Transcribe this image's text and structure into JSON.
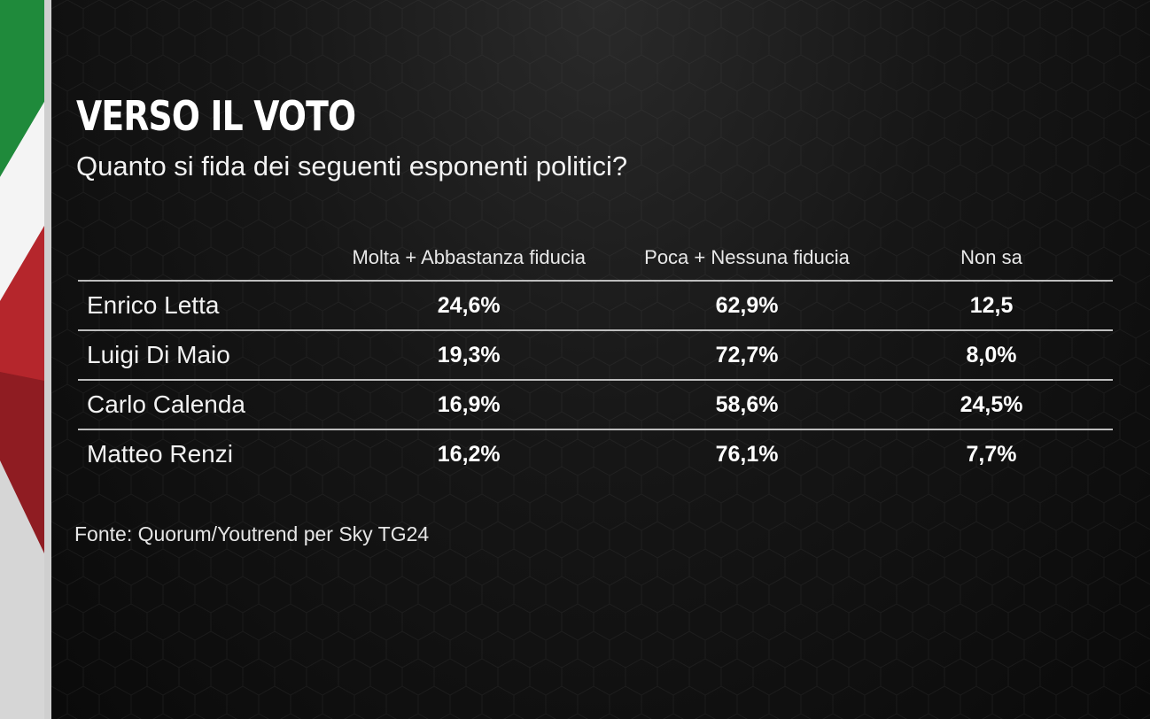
{
  "header": {
    "title": "VERSO IL VOTO",
    "subtitle": "Quanto si fida dei seguenti esponenti politici?"
  },
  "chart_data": {
    "type": "table",
    "title": "VERSO IL VOTO",
    "subtitle": "Quanto si fida dei seguenti esponenti politici?",
    "columns": [
      "",
      "Molta + Abbastanza fiducia",
      "Poca + Nessuna fiducia",
      "Non sa"
    ],
    "rows": [
      {
        "name": "Enrico Letta",
        "values": [
          "24,6%",
          "62,9%",
          "12,5"
        ]
      },
      {
        "name": "Luigi Di Maio",
        "values": [
          "19,3%",
          "72,7%",
          "8,0%"
        ]
      },
      {
        "name": "Carlo Calenda",
        "values": [
          "16,9%",
          "58,6%",
          "24,5%"
        ]
      },
      {
        "name": "Matteo Renzi",
        "values": [
          "16,2%",
          "76,1%",
          "7,7%"
        ]
      }
    ]
  },
  "footer": {
    "source": "Fonte: Quorum/Youtrend per Sky TG24"
  },
  "colors": {
    "flag_green": "#1f8a3b",
    "flag_white": "#f4f4f4",
    "flag_red": "#b5262c",
    "background": "#0e0e0e"
  }
}
